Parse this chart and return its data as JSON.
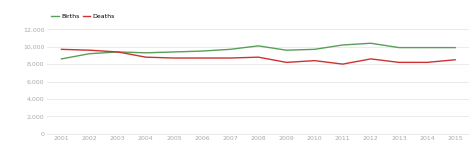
{
  "years": [
    2001,
    2002,
    2003,
    2004,
    2005,
    2006,
    2007,
    2008,
    2009,
    2010,
    2011,
    2012,
    2013,
    2014,
    2015
  ],
  "births": [
    8600,
    9200,
    9400,
    9300,
    9400,
    9500,
    9700,
    10100,
    9600,
    9700,
    10200,
    10400,
    9900,
    9900,
    9900
  ],
  "deaths": [
    9700,
    9600,
    9400,
    8800,
    8700,
    8700,
    8700,
    8800,
    8200,
    8400,
    8000,
    8600,
    8200,
    8200,
    8500
  ],
  "births_color": "#5a9e5a",
  "deaths_color": "#cc3333",
  "background_color": "#ffffff",
  "grid_color": "#e8e8e8",
  "tick_color": "#aaaaaa",
  "ylim": [
    0,
    12000
  ],
  "yticks": [
    0,
    2000,
    4000,
    6000,
    8000,
    10000,
    12000
  ],
  "ytick_labels": [
    "0",
    "2,000",
    "4,000",
    "6,000",
    "8,000",
    "10,000",
    "12,000"
  ],
  "legend_labels": [
    "Births",
    "Deaths"
  ],
  "line_width": 1.0
}
